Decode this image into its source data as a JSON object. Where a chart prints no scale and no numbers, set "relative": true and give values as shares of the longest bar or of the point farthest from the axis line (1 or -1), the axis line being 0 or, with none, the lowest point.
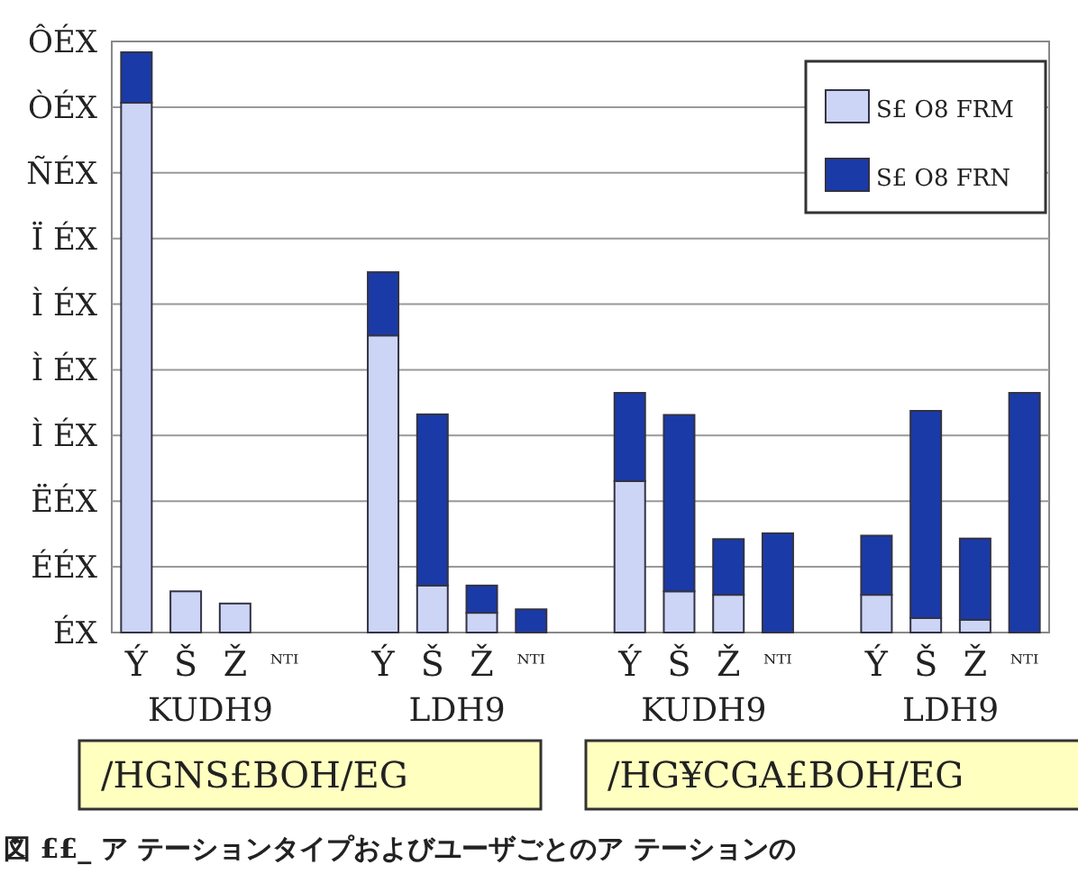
{
  "chart_data": {
    "type": "bar",
    "stacked": true,
    "relative": true,
    "grid": "y",
    "legend": "top right",
    "categories": [
      "Ý",
      "Š",
      "Ž",
      "ᴺᵀᴵ",
      null,
      "Ý",
      "Š",
      "Ž",
      "ᴺᵀᴵ",
      null,
      "Ý",
      "Š",
      "Ž",
      "ᴺᵀᴵ",
      null,
      "Ý",
      "Š",
      "Ž",
      "ᴺᵀᴵ"
    ],
    "series": [
      {
        "name": "S£ O8 FRM",
        "color": "#cdd5f7",
        "values": [
          0.913,
          0.071,
          0.05,
          null,
          null,
          0.512,
          0.081,
          0.034,
          null,
          null,
          0.261,
          0.071,
          0.065,
          null,
          null,
          0.065,
          0.025,
          0.022,
          null
        ]
      },
      {
        "name": "S£ O8 FRN",
        "color": "#1a3aa8",
        "values": [
          0.087,
          null,
          null,
          null,
          null,
          0.109,
          0.295,
          0.047,
          0.04,
          null,
          0.152,
          0.304,
          0.096,
          0.171,
          null,
          0.102,
          0.357,
          0.14,
          0.413
        ]
      }
    ],
    "annotations": [
      "KUDH9",
      "LDH9",
      "KUDH9",
      "LDH9",
      "/HGNS£BOH/EG",
      "/HG¥CGA£BOH/EG",
      "図 ££_ ア テーションタイプおよびユーザごとのア テーションの",
      "ÔÉX",
      "ÒÉX",
      "ÑÉX",
      "Ï ÉX",
      "Ì ÉX",
      "Ì ÉX",
      "Ì ÉX",
      "ËÉX",
      "ÉÉX",
      "ÉX"
    ]
  }
}
